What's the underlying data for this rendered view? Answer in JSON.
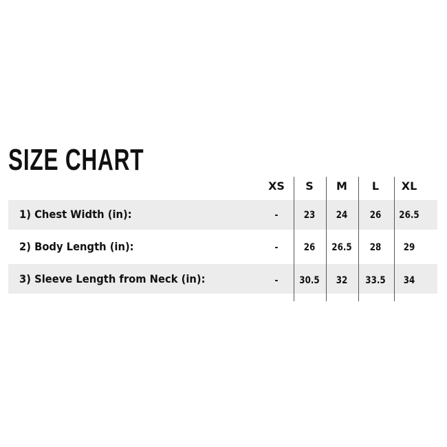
{
  "title": "SIZE CHART",
  "table": {
    "columns": [
      "XS",
      "S",
      "M",
      "L",
      "XL"
    ],
    "rows": [
      {
        "label": "1) Chest Width (in):",
        "values": [
          "-",
          "23",
          "24",
          "26",
          "26.5"
        ]
      },
      {
        "label": "2) Body Length (in):",
        "values": [
          "-",
          "26",
          "26.5",
          "28",
          "29"
        ]
      },
      {
        "label": "3) Sleeve Length from Neck (in):",
        "values": [
          "-",
          "30.5",
          "32",
          "33.5",
          "34"
        ]
      }
    ]
  },
  "colors": {
    "band": "#ececec",
    "text": "#111111"
  }
}
